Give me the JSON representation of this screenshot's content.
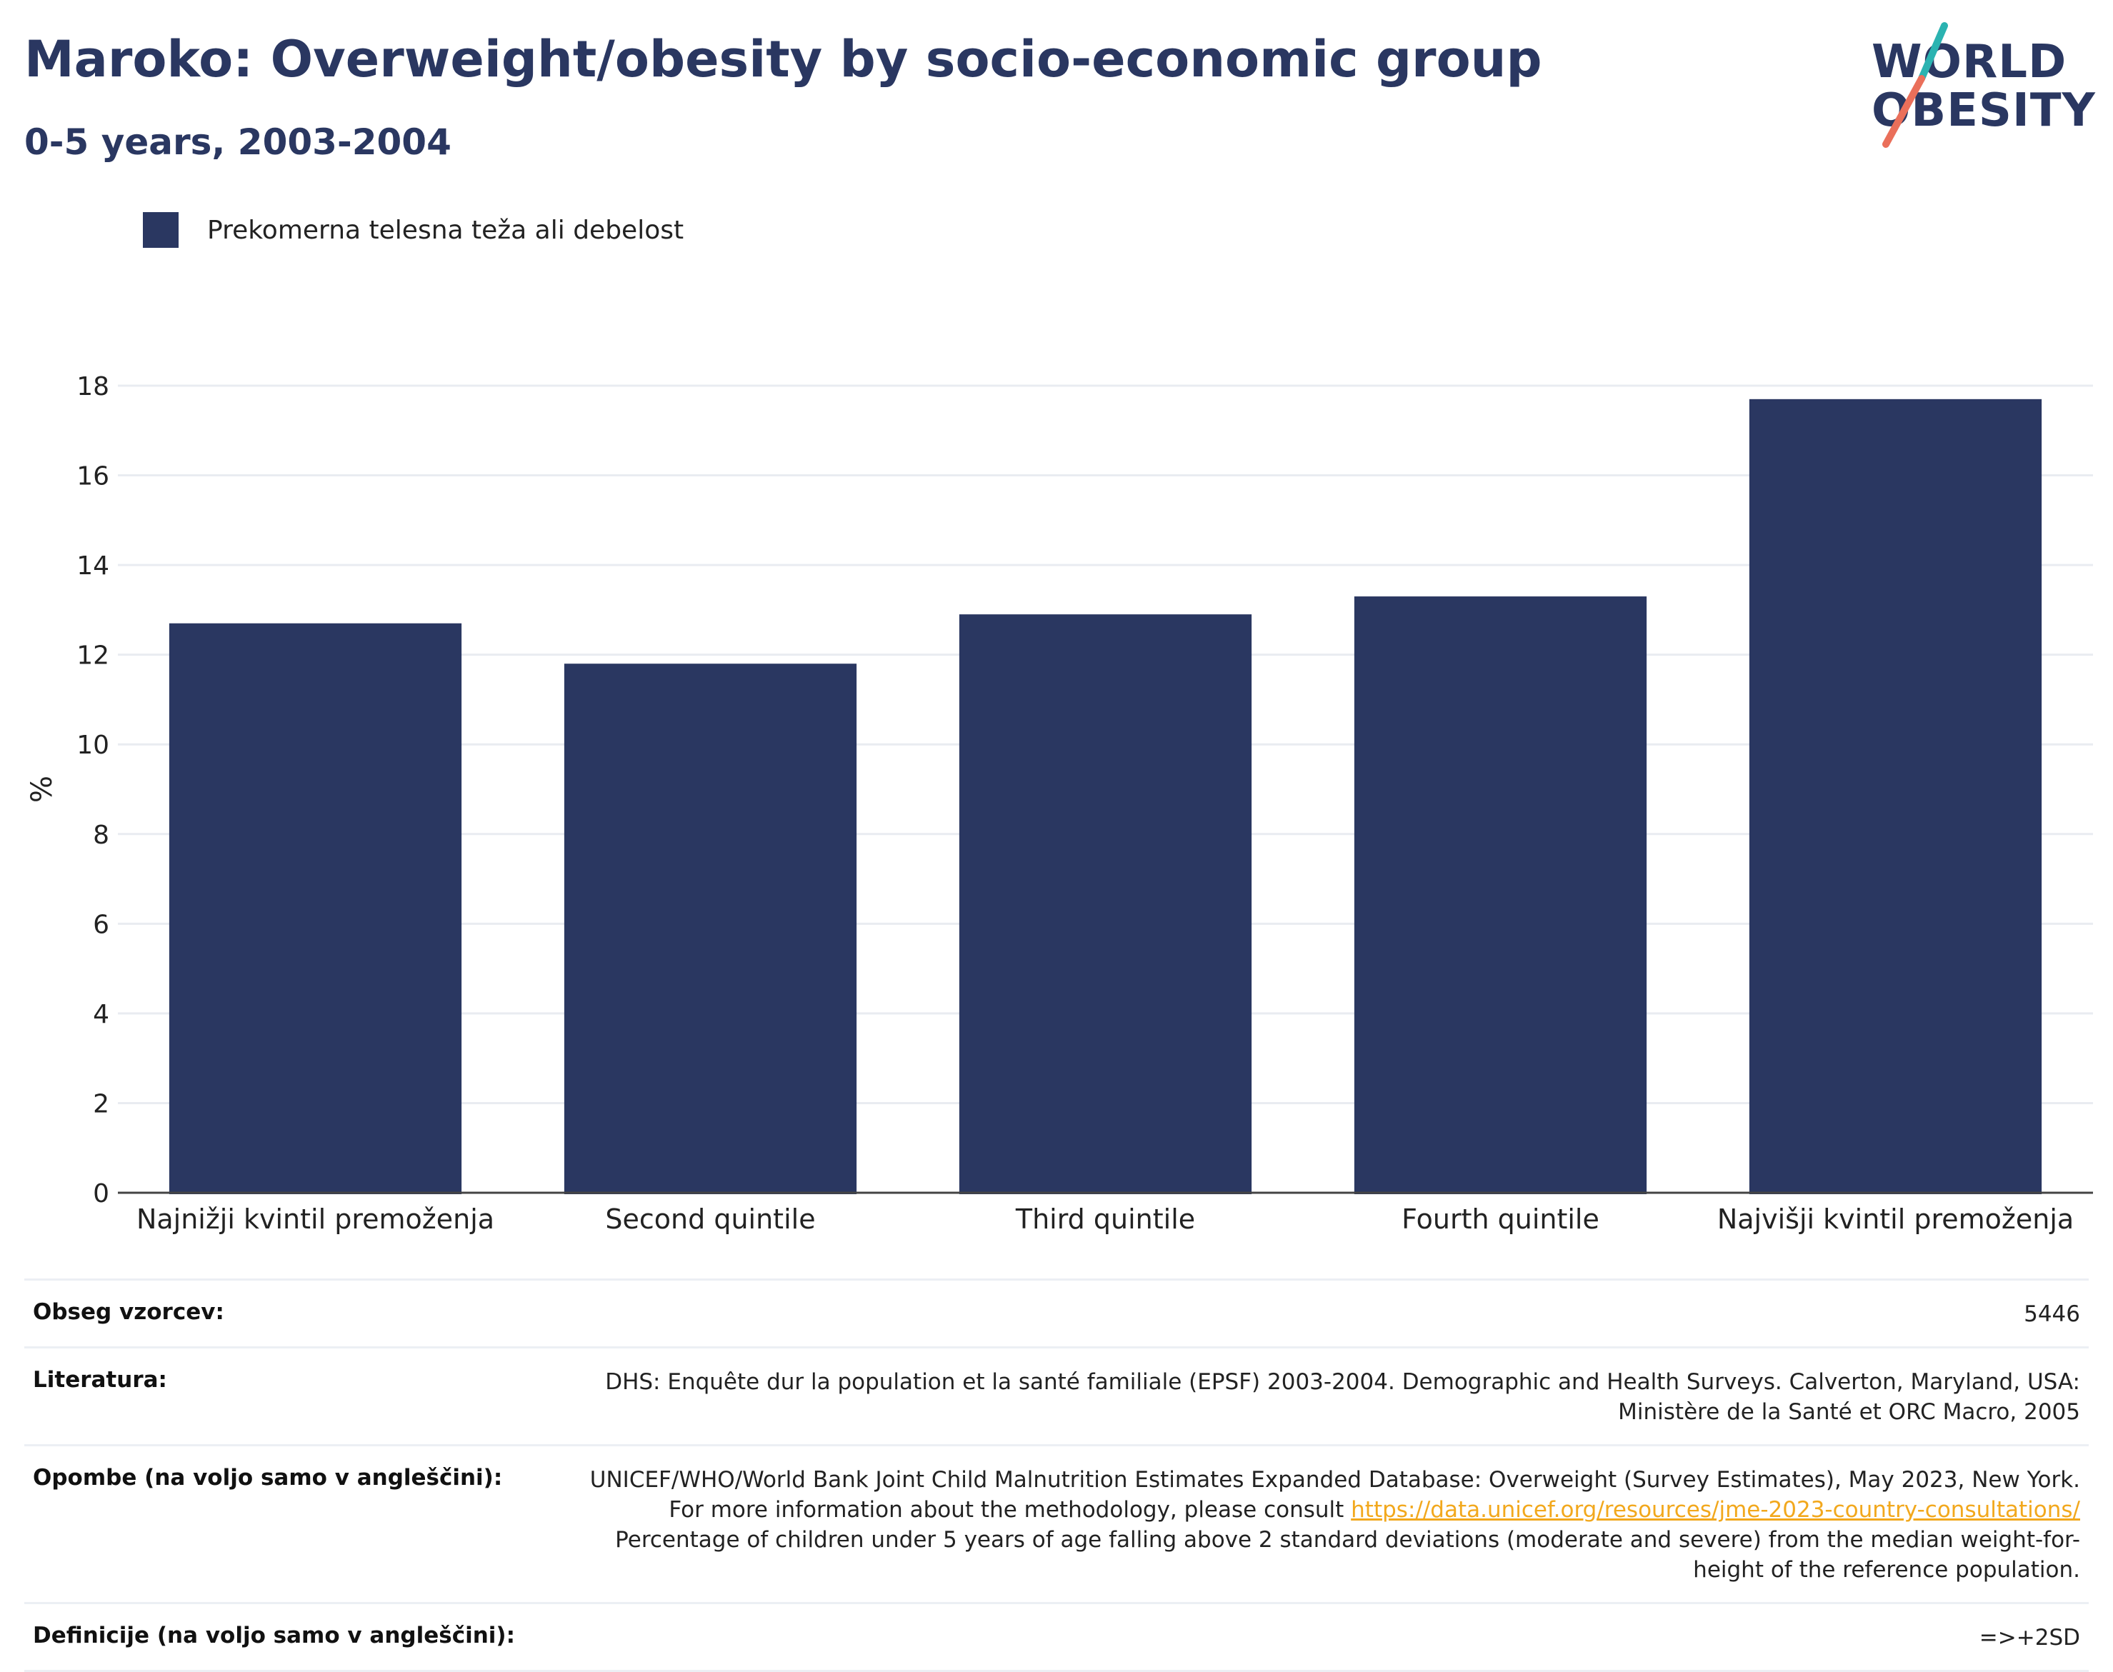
{
  "header": {
    "title": "Maroko: Overweight/obesity by socio-economic group",
    "subtitle": "0-5 years, 2003-2004"
  },
  "logo": {
    "line1": "WORLD",
    "line2": "OBESITY",
    "colors": {
      "text": "#2a3761",
      "slash_top": "#2bb3b1",
      "slash_bottom": "#ea6f5a"
    }
  },
  "legend": {
    "label": "Prekomerna telesna teža ali debelost",
    "color": "#2a3761"
  },
  "chart_data": {
    "type": "bar",
    "title": "Maroko: Overweight/obesity by socio-economic group",
    "subtitle": "0-5 years, 2003-2004",
    "categories": [
      "Najnižji kvintil premoženja",
      "Second quintile",
      "Third quintile",
      "Fourth quintile",
      "Najvišji kvintil premoženja"
    ],
    "series": [
      {
        "name": "Prekomerna telesna teža ali debelost",
        "values": [
          12.7,
          11.8,
          12.9,
          13.3,
          17.7
        ],
        "color": "#2a3761"
      }
    ],
    "xlabel": "",
    "ylabel": "%",
    "ylim": [
      0,
      18
    ],
    "yticks": [
      0,
      2,
      4,
      6,
      8,
      10,
      12,
      14,
      16,
      18
    ],
    "grid": true,
    "legend_position": "top-left"
  },
  "meta": {
    "sample_label": "Obseg vzorcev:",
    "sample_value": "5446",
    "literature_label": "Literatura:",
    "literature_value": "DHS: Enquête dur la population et la santé familiale (EPSF) 2003-2004. Demographic and Health Surveys. Calverton, Maryland, USA: Ministère de la Santé et ORC Macro, 2005",
    "notes_label": "Opombe (na voljo samo v angleščini):",
    "notes_text_before": "UNICEF/WHO/World Bank Joint Child Malnutrition Estimates Expanded Database: Overweight (Survey Estimates), May 2023, New York. For more information about the methodology, please consult ",
    "notes_link": "https://data.unicef.org/resources/jme-2023-country-consultations/",
    "notes_text_after": "Percentage of children under 5 years of age falling above 2 standard deviations (moderate and severe) from the median weight-for-height of the reference population.",
    "definitions_label": "Definicije (na voljo samo v angleščini):",
    "definitions_value": "=>+2SD"
  }
}
